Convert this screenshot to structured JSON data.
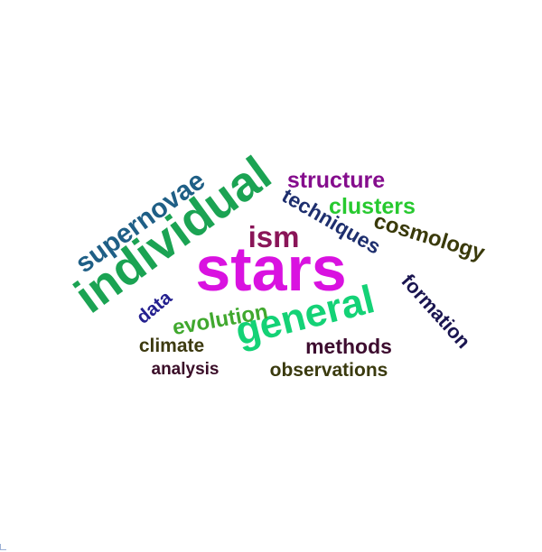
{
  "words": [
    {
      "key": "stars",
      "text": "stars",
      "color": "#d912e0"
    },
    {
      "key": "individual",
      "text": "individual",
      "color": "#1ba353"
    },
    {
      "key": "general",
      "text": "general",
      "color": "#14d276"
    },
    {
      "key": "supernovae",
      "text": "supernovae",
      "color": "#1f5f86"
    },
    {
      "key": "structure",
      "text": "structure",
      "color": "#850d8d"
    },
    {
      "key": "techniques",
      "text": "techniques",
      "color": "#1e2f6e"
    },
    {
      "key": "clusters",
      "text": "clusters",
      "color": "#27c92f"
    },
    {
      "key": "ism",
      "text": "ism",
      "color": "#8a1558"
    },
    {
      "key": "cosmology",
      "text": "cosmology",
      "color": "#3a3a0a"
    },
    {
      "key": "formation",
      "text": "formation",
      "color": "#1a1550"
    },
    {
      "key": "data",
      "text": "data",
      "color": "#24208f"
    },
    {
      "key": "evolution",
      "text": "evolution",
      "color": "#40a82e"
    },
    {
      "key": "climate",
      "text": "climate",
      "color": "#3d3a10"
    },
    {
      "key": "methods",
      "text": "methods",
      "color": "#3d0c2f"
    },
    {
      "key": "analysis",
      "text": "analysis",
      "color": "#3a0d28"
    },
    {
      "key": "observations",
      "text": "observations",
      "color": "#3a3a0e"
    }
  ]
}
